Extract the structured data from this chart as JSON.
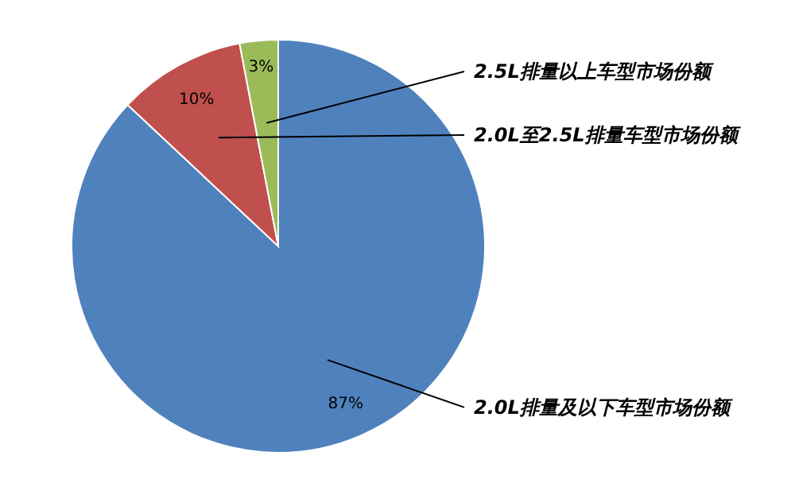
{
  "chart_data": {
    "type": "pie",
    "categories": [
      "2.0L排量及以下车型市场份额",
      "2.0L至2.5L排量车型市场份额",
      "2.5L排量以上车型市场份额"
    ],
    "values": [
      87,
      10,
      3
    ],
    "colors": [
      "#4f81bd",
      "#c0504d",
      "#9bbb59"
    ],
    "value_labels": [
      "87%",
      "10%",
      "3%"
    ]
  }
}
